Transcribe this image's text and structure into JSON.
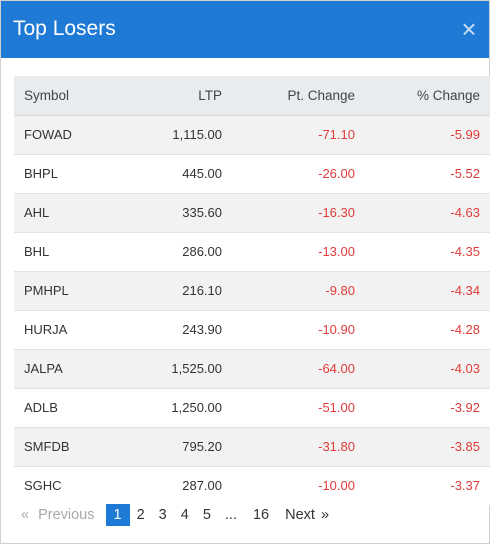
{
  "modal": {
    "title": "Top Losers",
    "close_symbol": "×"
  },
  "table": {
    "headers": {
      "symbol": "Symbol",
      "ltp": "LTP",
      "pt_change": "Pt. Change",
      "pct_change": "% Change"
    },
    "rows": [
      {
        "symbol": "FOWAD",
        "ltp": "1,115.00",
        "pt_change": "-71.10",
        "pct_change": "-5.99"
      },
      {
        "symbol": "BHPL",
        "ltp": "445.00",
        "pt_change": "-26.00",
        "pct_change": "-5.52"
      },
      {
        "symbol": "AHL",
        "ltp": "335.60",
        "pt_change": "-16.30",
        "pct_change": "-4.63"
      },
      {
        "symbol": "BHL",
        "ltp": "286.00",
        "pt_change": "-13.00",
        "pct_change": "-4.35"
      },
      {
        "symbol": "PMHPL",
        "ltp": "216.10",
        "pt_change": "-9.80",
        "pct_change": "-4.34"
      },
      {
        "symbol": "HURJA",
        "ltp": "243.90",
        "pt_change": "-10.90",
        "pct_change": "-4.28"
      },
      {
        "symbol": "JALPA",
        "ltp": "1,525.00",
        "pt_change": "-64.00",
        "pct_change": "-4.03"
      },
      {
        "symbol": "ADLB",
        "ltp": "1,250.00",
        "pt_change": "-51.00",
        "pct_change": "-3.92"
      },
      {
        "symbol": "SMFDB",
        "ltp": "795.20",
        "pt_change": "-31.80",
        "pct_change": "-3.85"
      },
      {
        "symbol": "SGHC",
        "ltp": "287.00",
        "pt_change": "-10.00",
        "pct_change": "-3.37"
      }
    ]
  },
  "pagination": {
    "previous_arrow": "«",
    "previous_label": "Previous",
    "pages": [
      "1",
      "2",
      "3",
      "4",
      "5"
    ],
    "ellipsis": "...",
    "last_page": "16",
    "next_label": "Next",
    "next_arrow": "»",
    "current_page": "1"
  },
  "colors": {
    "header_bg": "#1e7ad4",
    "negative": "#e03b3b",
    "active_page_bg": "#1e7ad4"
  }
}
